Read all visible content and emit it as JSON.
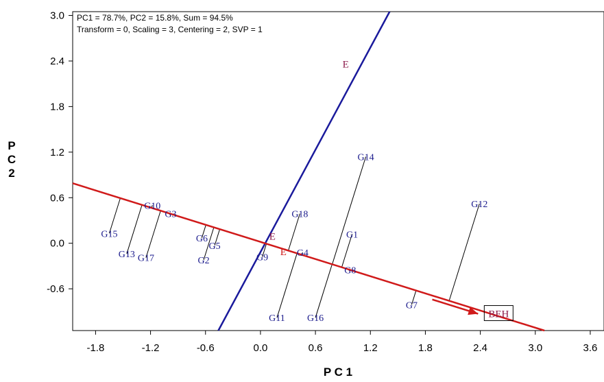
{
  "chart_data": {
    "type": "scatter",
    "title_lines": [
      "PC1 = 78.7%, PC2 = 15.8%, Sum = 94.5%",
      "Transform = 0, Scaling = 3, Centering = 2, SVP = 1"
    ],
    "xlabel": "P C 1",
    "ylabel": "P C 2",
    "xlim": [
      -2.05,
      3.75
    ],
    "ylim": [
      -1.15,
      3.05
    ],
    "xticks": [
      -1.8,
      -1.2,
      -0.6,
      0.0,
      0.6,
      1.2,
      1.8,
      2.4,
      3.0,
      3.6
    ],
    "yticks": [
      -0.6,
      0.0,
      0.6,
      1.2,
      1.8,
      2.4,
      3.0
    ],
    "colors": {
      "aea_axis": "#d01a1a",
      "perp_axis": "#1a1a9c",
      "projection": "#000000",
      "genotype_text": "#1a1a8c",
      "environment_text": "#8b1a4a"
    },
    "aea_axis": {
      "x1": -2.05,
      "y1": 0.79,
      "x2": 3.1,
      "y2": -1.15
    },
    "perp_axis": {
      "x1": -0.46,
      "y1": -1.15,
      "x2": 1.41,
      "y2": 3.05
    },
    "genotypes": [
      {
        "name": "G1",
        "x": 1.0,
        "y": 0.12
      },
      {
        "name": "G2",
        "x": -0.62,
        "y": -0.22
      },
      {
        "name": "G3",
        "x": -0.98,
        "y": 0.39
      },
      {
        "name": "G4",
        "x": 0.46,
        "y": -0.12
      },
      {
        "name": "G5",
        "x": -0.5,
        "y": -0.03
      },
      {
        "name": "G6",
        "x": -0.64,
        "y": 0.07
      },
      {
        "name": "G7",
        "x": 1.65,
        "y": -0.81
      },
      {
        "name": "G8",
        "x": 0.98,
        "y": -0.35
      },
      {
        "name": "G9",
        "x": 0.02,
        "y": -0.18
      },
      {
        "name": "G10",
        "x": -1.18,
        "y": 0.5
      },
      {
        "name": "G11",
        "x": 0.18,
        "y": -0.98
      },
      {
        "name": "G12",
        "x": 2.39,
        "y": 0.52
      },
      {
        "name": "G13",
        "x": -1.46,
        "y": -0.14
      },
      {
        "name": "G14",
        "x": 1.15,
        "y": 1.14
      },
      {
        "name": "G15",
        "x": -1.65,
        "y": 0.13
      },
      {
        "name": "G16",
        "x": 0.6,
        "y": -0.98
      },
      {
        "name": "G17",
        "x": -1.25,
        "y": -0.19
      },
      {
        "name": "G18",
        "x": 0.43,
        "y": 0.39
      }
    ],
    "environments": [
      {
        "name": "E",
        "x": 0.93,
        "y": 2.37,
        "color": "#8b1a4a"
      },
      {
        "name": "E",
        "x": 0.13,
        "y": 0.1,
        "color": "#8b1a4a"
      },
      {
        "name": "E",
        "x": 0.25,
        "y": -0.1,
        "color": "#d01a1a"
      }
    ],
    "beh_label": {
      "name": "BEH",
      "x": 2.6,
      "y": -0.92
    }
  }
}
